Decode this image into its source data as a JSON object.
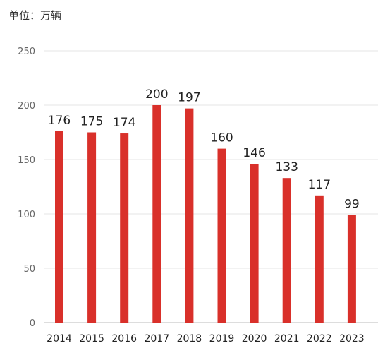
{
  "chart_data": {
    "type": "bar",
    "unit_label": "单位：万辆",
    "categories": [
      "2014",
      "2015",
      "2016",
      "2017",
      "2018",
      "2019",
      "2020",
      "2021",
      "2022",
      "2023"
    ],
    "values": [
      176,
      175,
      174,
      200,
      197,
      160,
      146,
      133,
      117,
      99
    ],
    "data_labels": [
      "176",
      "175",
      "174",
      "200",
      "197",
      "160",
      "146",
      "133",
      "117",
      "99"
    ],
    "yticks": [
      0,
      50,
      100,
      150,
      200,
      250
    ],
    "ylim": [
      0,
      250
    ],
    "grid": true,
    "legend": "none",
    "colors": {
      "bar": "#d9302a",
      "grid": "#e6e6e6",
      "axis": "#bbbbbb"
    }
  }
}
